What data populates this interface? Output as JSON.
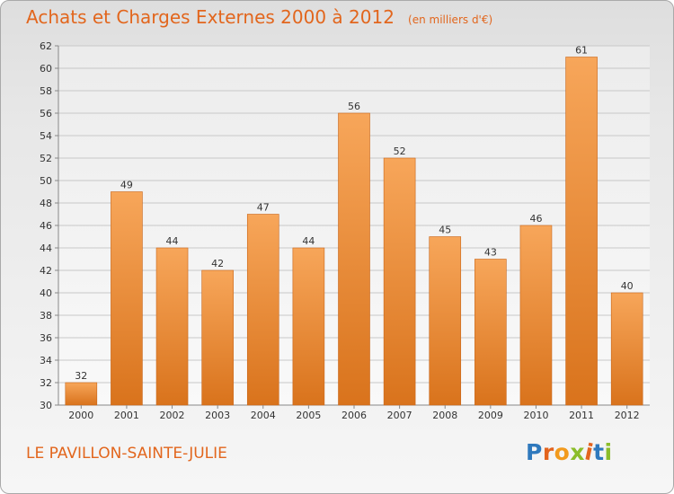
{
  "header": {
    "title": "Achats et Charges Externes 2000 à 2012",
    "unit": "(en milliers d'€)"
  },
  "footer": {
    "commune": "LE PAVILLON-SAINTE-JULIE",
    "logo_text": "Proxiti"
  },
  "colors": {
    "accent": "#e2661d",
    "bar_light": "#f7a65a",
    "bar_dark": "#d9731c",
    "grid": "#c8c8c8"
  },
  "chart_data": {
    "type": "bar",
    "title": "Achats et Charges Externes 2000 à 2012",
    "subtitle": "(en milliers d'€)",
    "xlabel": "",
    "ylabel": "",
    "categories": [
      "2000",
      "2001",
      "2002",
      "2003",
      "2004",
      "2005",
      "2006",
      "2007",
      "2008",
      "2009",
      "2010",
      "2011",
      "2012"
    ],
    "values": [
      32,
      49,
      44,
      42,
      47,
      44,
      56,
      52,
      45,
      43,
      46,
      61,
      40
    ],
    "data_labels": [
      "32",
      "49",
      "44",
      "42",
      "47",
      "44",
      "56",
      "52",
      "45",
      "43",
      "46",
      "61",
      "40"
    ],
    "ylim": [
      30,
      62
    ],
    "yticks": [
      30,
      32,
      34,
      36,
      38,
      40,
      42,
      44,
      46,
      48,
      50,
      52,
      54,
      56,
      58,
      60,
      62
    ],
    "ytick_labels": [
      "30",
      "32",
      "34",
      "36",
      "38",
      "40",
      "42",
      "44",
      "46",
      "48",
      "50",
      "52",
      "54",
      "56",
      "58",
      "60",
      "62"
    ],
    "grid": true,
    "legend": "none"
  }
}
